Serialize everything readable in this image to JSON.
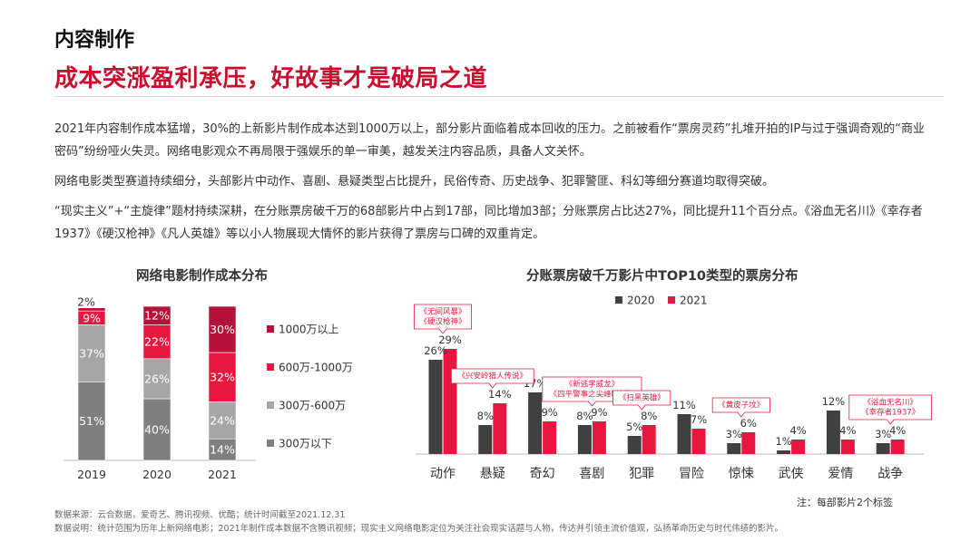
{
  "header": {
    "section": "内容制作",
    "headline": "成本突涨盈利承压，好故事才是破局之道"
  },
  "paragraphs": [
    "2021年内容制作成本猛增，30%的上新影片制作成本达到1000万以上，部分影片面临着成本回收的压力。之前被看作“票房灵药”扎堆开拍的IP与过于强调奇观的“商业密码”纷纷哑火失灵。网络电影观众不再局限于强娱乐的单一审美，越发关注内容品质，具备人文关怀。",
    "网络电影类型赛道持续细分，头部影片中动作、喜剧、悬疑类型占比提升，民俗传奇、历史战争、犯罪警匪、科幻等细分赛道均取得突破。",
    "“现实主义”+“主旋律”题材持续深耕，在分账票房破千万的68部影片中占到17部，同比增加3部；分账票房占比达27%，同比提升11个百分点。《浴血无名川》《幸存者1937》《硬汉枪神》《凡人英雄》等以小人物展现大情怀的影片获得了票房与口碑的双重肯定。"
  ],
  "chart_data": [
    {
      "type": "bar",
      "stacked": true,
      "percent": true,
      "title": "网络电影制作成本分布",
      "categories": [
        "2019",
        "2020",
        "2021"
      ],
      "series": [
        {
          "name": "300万以下",
          "values": [
            51,
            40,
            14
          ],
          "color": "#7f7f7f"
        },
        {
          "name": "300万-600万",
          "values": [
            37,
            26,
            24
          ],
          "color": "#a6a6a6"
        },
        {
          "name": "600万-1000万",
          "values": [
            9,
            22,
            32
          ],
          "color": "#e8173f"
        },
        {
          "name": "1000万以上",
          "values": [
            2,
            12,
            30
          ],
          "color": "#b5123a"
        }
      ],
      "legend_position": "right"
    },
    {
      "type": "bar",
      "title": "分账票房破千万影片中TOP10类型的票房分布",
      "categories": [
        "动作",
        "悬疑",
        "奇幻",
        "喜剧",
        "犯罪",
        "冒险",
        "惊悚",
        "武侠",
        "爱情",
        "战争"
      ],
      "series": [
        {
          "name": "2020",
          "values": [
            26,
            8,
            17,
            8,
            5,
            11,
            3,
            1,
            12,
            3
          ],
          "color": "#404040"
        },
        {
          "name": "2021",
          "values": [
            29,
            14,
            9,
            9,
            8,
            7,
            6,
            4,
            4,
            4
          ],
          "color": "#e8173f"
        }
      ],
      "legend_position": "top",
      "callouts": [
        {
          "category": "动作",
          "lines": [
            "《无间风暴》",
            "《硬汉枪神》"
          ]
        },
        {
          "category": "悬疑",
          "lines": [
            "《兴安岭猎人传说》"
          ]
        },
        {
          "category": "喜剧",
          "lines": [
            "《新逃学威龙》",
            "《四平警事之尖峰时刻》"
          ]
        },
        {
          "category": "犯罪",
          "lines": [
            "《扫黑英雄》"
          ]
        },
        {
          "category": "惊悚",
          "lines": [
            "《黄皮子坟》"
          ]
        },
        {
          "category": "战争",
          "lines": [
            "《浴血无名川》",
            "《幸存者1937》"
          ]
        }
      ],
      "note": "注：每部影片2个标签"
    }
  ],
  "footer": {
    "source": "数据来源：云合数据，爱奇艺、腾讯视频、优酷；统计时间截至2021.12.31",
    "explain": "数据说明：统计范围为历年上新网络电影；2021年制作成本数据不含腾讯视频；现实主义网络电影定位为关注社会现实话题与人物，传达并引领主流价值观，弘扬革命历史与时代伟绩的影片。"
  }
}
